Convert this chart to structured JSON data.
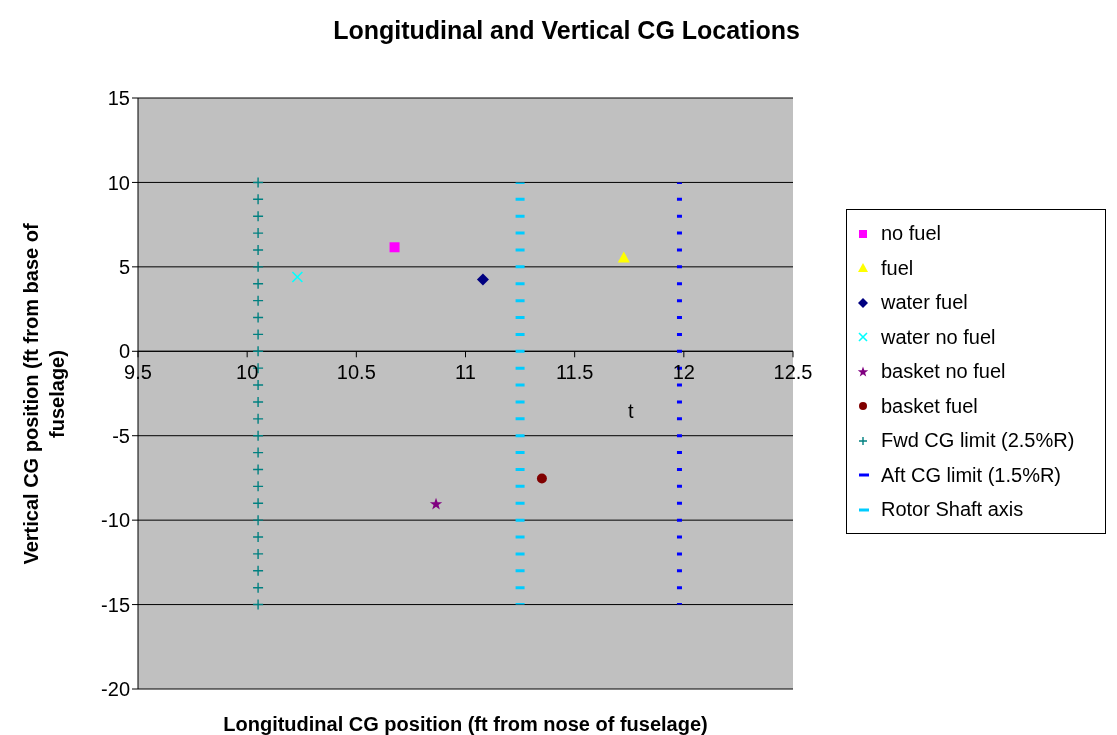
{
  "chart_data": {
    "type": "scatter",
    "title": "Longitudinal and Vertical CG Locations",
    "xlabel": "Longitudinal CG position (ft from nose of fuselage)",
    "ylabel": "Vertical CG position (ft from base of fuselage)",
    "xlim": [
      9.5,
      12.5
    ],
    "xticks": [
      9.5,
      10,
      10.5,
      11,
      11.5,
      12,
      12.5
    ],
    "ylim": [
      -20,
      15
    ],
    "yticks": [
      -20,
      -15,
      -10,
      -5,
      0,
      5,
      10,
      15
    ],
    "grid": "y",
    "legend": "right",
    "annotations": [
      "t"
    ],
    "series": [
      {
        "name": "no fuel",
        "color": "#ff00ff",
        "marker": "square",
        "x": [
          10.675
        ],
        "values": [
          6.16
        ]
      },
      {
        "name": "fuel",
        "color": "#ffff00",
        "marker": "triangle",
        "x": [
          11.725
        ],
        "values": [
          5.56
        ]
      },
      {
        "name": "water fuel",
        "color": "#000080",
        "marker": "diamond",
        "x": [
          11.08
        ],
        "values": [
          4.25
        ]
      },
      {
        "name": "water no fuel",
        "color": "#00ffff",
        "marker": "x",
        "x": [
          10.23
        ],
        "values": [
          4.4
        ]
      },
      {
        "name": "basket no fuel",
        "color": "#800080",
        "marker": "star",
        "x": [
          10.865
        ],
        "values": [
          -9.06
        ]
      },
      {
        "name": "basket fuel",
        "color": "#800000",
        "marker": "circle",
        "x": [
          11.35
        ],
        "values": [
          -7.53
        ]
      },
      {
        "name": "Fwd CG limit (2.5%R)",
        "color": "#008080",
        "marker": "cross",
        "x": [
          10.05,
          10.05,
          10.05,
          10.05,
          10.05,
          10.05,
          10.05,
          10.05,
          10.05,
          10.05,
          10.05,
          10.05,
          10.05,
          10.05,
          10.05,
          10.05,
          10.05,
          10.05,
          10.05,
          10.05,
          10.05,
          10.05,
          10.05,
          10.05,
          10.05,
          10.05
        ],
        "values": [
          10,
          9,
          8,
          7,
          6,
          5,
          4,
          3,
          2,
          1,
          0,
          -1,
          -2,
          -3,
          -4,
          -5,
          -6,
          -7,
          -8,
          -9,
          -10,
          -11,
          -12,
          -13,
          -14,
          -15
        ]
      },
      {
        "name": "Aft CG limit (1.5%R)",
        "color": "#0000ff",
        "type": "line",
        "line_style": "dashed",
        "marker": "none",
        "x": [
          11.98,
          11.98
        ],
        "values": [
          -15,
          10
        ]
      },
      {
        "name": "Rotor Shaft axis",
        "color": "#00ccff",
        "type": "line",
        "line_style": "dashed",
        "marker": "none",
        "x": [
          11.25,
          11.25
        ],
        "values": [
          -15,
          10
        ]
      }
    ]
  }
}
